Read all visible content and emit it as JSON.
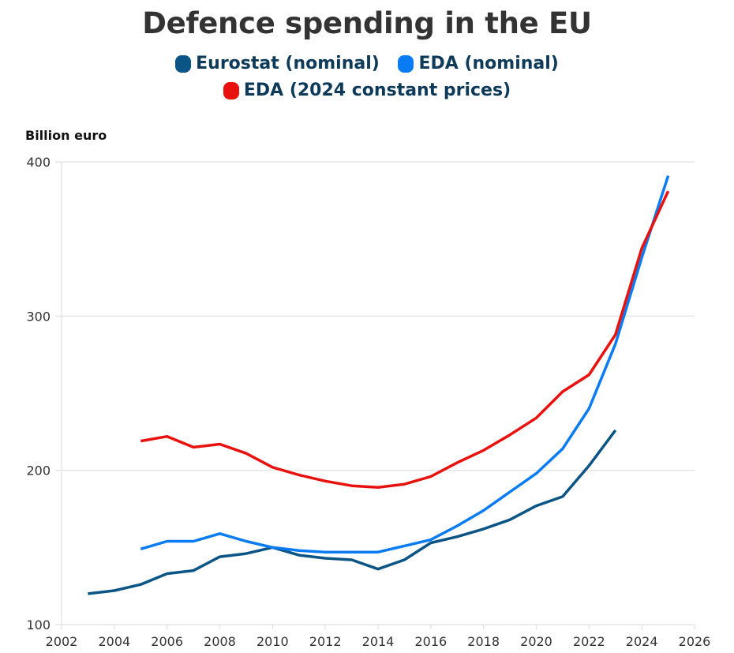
{
  "chart_data": {
    "type": "line",
    "title": "Defence spending in the EU",
    "ylabel": "Billion euro",
    "xlabel": "",
    "xlim": [
      2002,
      2026
    ],
    "ylim": [
      100,
      400
    ],
    "xticks": [
      2002,
      2004,
      2006,
      2008,
      2010,
      2012,
      2014,
      2016,
      2018,
      2020,
      2022,
      2024,
      2026
    ],
    "yticks": [
      100,
      200,
      300,
      400
    ],
    "grid": "horizontal",
    "legend_position": "top-center",
    "series": [
      {
        "name": "Eurostat (nominal)",
        "color": "#0b5486",
        "x": [
          2003,
          2004,
          2005,
          2006,
          2007,
          2008,
          2009,
          2010,
          2011,
          2012,
          2013,
          2014,
          2015,
          2016,
          2017,
          2018,
          2019,
          2020,
          2021,
          2022,
          2023
        ],
        "values": [
          120,
          122,
          126,
          133,
          135,
          144,
          146,
          150,
          145,
          143,
          142,
          136,
          142,
          153,
          157,
          162,
          168,
          177,
          183,
          203,
          226
        ]
      },
      {
        "name": "EDA (nominal)",
        "color": "#0a7cf3",
        "x": [
          2005,
          2006,
          2007,
          2008,
          2009,
          2010,
          2011,
          2012,
          2013,
          2014,
          2015,
          2016,
          2017,
          2018,
          2019,
          2020,
          2021,
          2022,
          2023,
          2024,
          2025
        ],
        "values": [
          149,
          154,
          154,
          159,
          154,
          150,
          148,
          147,
          147,
          147,
          151,
          155,
          164,
          174,
          186,
          198,
          214,
          240,
          282,
          338,
          391
        ]
      },
      {
        "name": "EDA (2024 constant prices)",
        "color": "#e8110e",
        "x": [
          2005,
          2006,
          2007,
          2008,
          2009,
          2010,
          2011,
          2012,
          2013,
          2014,
          2015,
          2016,
          2017,
          2018,
          2019,
          2020,
          2021,
          2022,
          2023,
          2024,
          2025
        ],
        "values": [
          219,
          222,
          215,
          217,
          211,
          202,
          197,
          193,
          190,
          189,
          191,
          196,
          205,
          213,
          223,
          234,
          251,
          262,
          288,
          344,
          381
        ]
      }
    ]
  }
}
